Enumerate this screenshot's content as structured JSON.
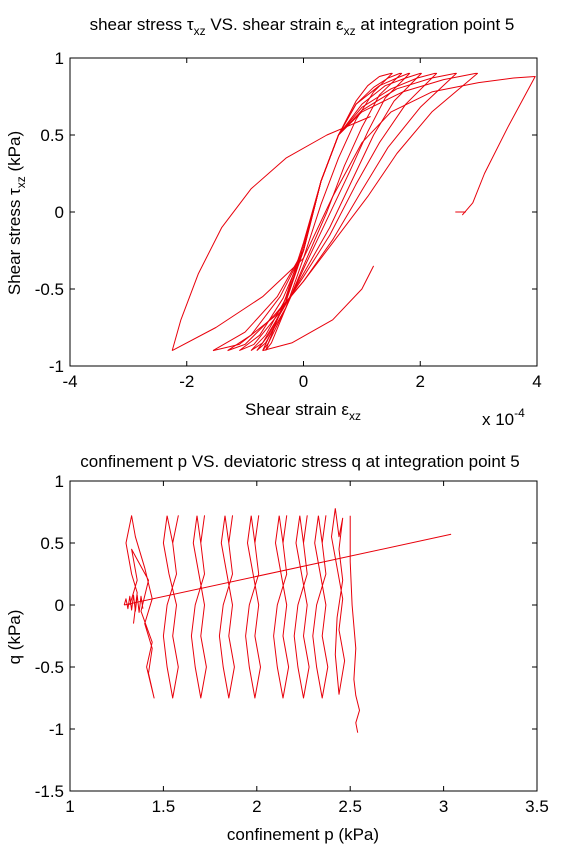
{
  "chart_data": [
    {
      "type": "line",
      "title": "shear stress τxz VS. shear strain εxz at integration point 5",
      "title_parts": {
        "a": "shear stress ",
        "a_sym": "τ",
        "a_sub": "xz",
        "b": " VS. shear strain ",
        "b_sym": "ε",
        "b_sub": "xz",
        "c": " at integration point 5"
      },
      "xlabel_parts": {
        "text": "Shear strain ",
        "sym": "ε",
        "sub": "xz"
      },
      "ylabel_parts": {
        "text": "Shear stress ",
        "sym": "τ",
        "sub": "xz",
        "unit": " (kPa)"
      },
      "x_exponent": {
        "base": "x 10",
        "exp": "-4"
      },
      "xlim": [
        -4,
        4
      ],
      "ylim": [
        -1,
        1
      ],
      "xticks": [
        -4,
        -2,
        0,
        2,
        4
      ],
      "yticks": [
        -1,
        -0.5,
        0,
        0.5,
        1
      ],
      "xtick_labels": [
        "-4",
        "-2",
        "0",
        "2",
        "4"
      ],
      "ytick_labels": [
        "-1",
        "-0.5",
        "0",
        "0.5",
        "1"
      ],
      "grid": false,
      "color": "#e8000b",
      "series": [
        {
          "x": [
            -0.65,
            -0.5,
            -0.3,
            0,
            0.3,
            0.6,
            0.9,
            1.1,
            1.3,
            1.5,
            1.52,
            1.2,
            0.9,
            0.6,
            0.3,
            0,
            -0.3,
            -0.55,
            -0.65
          ],
          "y": [
            -0.9,
            -0.75,
            -0.55,
            -0.2,
            0.2,
            0.5,
            0.72,
            0.82,
            0.88,
            0.9,
            0.9,
            0.78,
            0.6,
            0.35,
            0.05,
            -0.3,
            -0.62,
            -0.85,
            -0.9
          ]
        },
        {
          "x": [
            -0.7,
            -0.55,
            -0.3,
            0,
            0.3,
            0.6,
            0.9,
            1.2,
            1.45,
            1.65,
            1.68,
            1.3,
            1.0,
            0.7,
            0.4,
            0,
            -0.3,
            -0.6,
            -0.7
          ],
          "y": [
            -0.9,
            -0.78,
            -0.58,
            -0.22,
            0.2,
            0.5,
            0.7,
            0.81,
            0.87,
            0.9,
            0.9,
            0.76,
            0.55,
            0.3,
            0.0,
            -0.35,
            -0.62,
            -0.85,
            -0.9
          ]
        },
        {
          "x": [
            -0.8,
            -0.6,
            -0.3,
            0,
            0.3,
            0.6,
            0.9,
            1.3,
            1.6,
            1.8,
            1.82,
            1.4,
            1.1,
            0.8,
            0.4,
            0,
            -0.3,
            -0.65,
            -0.8
          ],
          "y": [
            -0.9,
            -0.8,
            -0.58,
            -0.25,
            0.2,
            0.5,
            0.7,
            0.82,
            0.87,
            0.9,
            0.9,
            0.74,
            0.52,
            0.27,
            -0.05,
            -0.37,
            -0.62,
            -0.85,
            -0.9
          ]
        },
        {
          "x": [
            -0.9,
            -0.65,
            -0.3,
            0,
            0.3,
            0.6,
            1.0,
            1.4,
            1.75,
            2.0,
            2.02,
            1.55,
            1.2,
            0.85,
            0.45,
            0,
            -0.35,
            -0.7,
            -0.9
          ],
          "y": [
            -0.9,
            -0.8,
            -0.56,
            -0.25,
            0.2,
            0.5,
            0.7,
            0.82,
            0.87,
            0.9,
            0.9,
            0.72,
            0.5,
            0.22,
            -0.1,
            -0.4,
            -0.63,
            -0.85,
            -0.9
          ]
        },
        {
          "x": [
            -1.1,
            -0.75,
            -0.35,
            0,
            0.3,
            0.6,
            1.0,
            1.5,
            1.95,
            2.25,
            2.28,
            1.75,
            1.3,
            0.9,
            0.45,
            0,
            -0.4,
            -0.85,
            -1.1
          ],
          "y": [
            -0.9,
            -0.8,
            -0.56,
            -0.25,
            0.2,
            0.5,
            0.68,
            0.8,
            0.87,
            0.9,
            0.9,
            0.7,
            0.45,
            0.18,
            -0.15,
            -0.42,
            -0.65,
            -0.86,
            -0.9
          ]
        },
        {
          "x": [
            -1.3,
            -0.9,
            -0.4,
            0,
            0.3,
            0.6,
            1.0,
            1.6,
            2.2,
            2.6,
            2.62,
            2.0,
            1.45,
            1.0,
            0.5,
            0,
            -0.5,
            -1.0,
            -1.3
          ],
          "y": [
            -0.9,
            -0.8,
            -0.55,
            -0.25,
            0.2,
            0.5,
            0.66,
            0.8,
            0.87,
            0.9,
            0.9,
            0.68,
            0.42,
            0.14,
            -0.18,
            -0.45,
            -0.67,
            -0.86,
            -0.9
          ]
        },
        {
          "x": [
            -1.55,
            -1.0,
            -0.45,
            0,
            0.3,
            0.6,
            1.0,
            1.7,
            2.4,
            2.95,
            2.98,
            2.2,
            1.6,
            1.1,
            0.5,
            0,
            -0.5,
            -1.1,
            -1.55
          ],
          "y": [
            -0.9,
            -0.78,
            -0.55,
            -0.25,
            0.2,
            0.5,
            0.65,
            0.78,
            0.86,
            0.9,
            0.9,
            0.65,
            0.38,
            0.1,
            -0.2,
            -0.45,
            -0.68,
            -0.86,
            -0.9
          ]
        },
        {
          "x": [
            -2.25,
            -1.5,
            -0.7,
            0,
            0.5,
            1.0,
            1.5,
            2.2,
            3.0,
            3.6,
            3.97,
            3.5,
            3.1,
            2.9,
            2.72
          ],
          "y": [
            -0.9,
            -0.75,
            -0.55,
            -0.3,
            0.1,
            0.45,
            0.65,
            0.78,
            0.84,
            0.87,
            0.88,
            0.55,
            0.25,
            0.06,
            -0.02
          ]
        },
        {
          "x": [
            2.6,
            2.78
          ],
          "y": [
            0.0,
            0.0
          ]
        },
        {
          "x": [
            1.15,
            0.4,
            -0.3,
            -0.9,
            -1.4,
            -1.8,
            -2.1,
            -2.25
          ],
          "y": [
            0.62,
            0.5,
            0.35,
            0.15,
            -0.1,
            -0.4,
            -0.7,
            -0.9
          ]
        },
        {
          "x": [
            -0.7,
            -0.2,
            0.5,
            1.0,
            1.2
          ],
          "y": [
            -0.9,
            -0.85,
            -0.7,
            -0.5,
            -0.35
          ]
        }
      ]
    },
    {
      "type": "line",
      "title": "confinement p VS. deviatoric stress q at integration point 5",
      "xlabel": "confinement p (kPa)",
      "ylabel": "q (kPa)",
      "xlim": [
        1,
        3.5
      ],
      "ylim": [
        -1.5,
        1
      ],
      "xticks": [
        1,
        1.5,
        2,
        2.5,
        3,
        3.5
      ],
      "yticks": [
        -1.5,
        -1,
        -0.5,
        0,
        0.5,
        1
      ],
      "xtick_labels": [
        "1",
        "1.5",
        "2",
        "2.5",
        "3",
        "3.5"
      ],
      "ytick_labels": [
        "-1.5",
        "-1",
        "-0.5",
        "0",
        "0.5",
        "1"
      ],
      "grid": false,
      "color": "#e8000b",
      "series": [
        {
          "x": [
            1.29,
            1.3,
            1.31,
            1.32,
            1.33,
            1.34,
            1.35,
            1.36,
            1.37,
            1.38,
            1.39
          ],
          "y": [
            0.0,
            0.05,
            -0.03,
            0.07,
            -0.04,
            0.08,
            -0.05,
            0.08,
            -0.06,
            0.07,
            -0.03
          ]
        },
        {
          "x": [
            1.29,
            3.04
          ],
          "y": [
            0.0,
            0.57
          ]
        },
        {
          "x": [
            1.32,
            1.36,
            1.33,
            1.42,
            1.38,
            1.44,
            1.41,
            1.45,
            1.42,
            1.44,
            1.4,
            1.44,
            1.4,
            1.35,
            1.33,
            1.3,
            1.33,
            1.36,
            1.34
          ],
          "y": [
            0.0,
            0.2,
            0.45,
            0.2,
            -0.05,
            -0.3,
            -0.5,
            -0.75,
            -0.55,
            -0.35,
            -0.15,
            0.05,
            0.3,
            0.55,
            0.72,
            0.5,
            0.25,
            0.1,
            -0.15
          ]
        },
        {
          "x": [
            1.52,
            1.5,
            1.53,
            1.57,
            1.55,
            1.58,
            1.55,
            1.52,
            1.5,
            1.52,
            1.57,
            1.55,
            1.58,
            1.55,
            1.52
          ],
          "y": [
            0.72,
            0.5,
            0.25,
            0.0,
            -0.25,
            -0.5,
            -0.75,
            -0.5,
            -0.25,
            0.0,
            0.25,
            0.5,
            0.72,
            0.5,
            0.72
          ]
        },
        {
          "x": [
            1.68,
            1.66,
            1.69,
            1.72,
            1.7,
            1.73,
            1.7,
            1.67,
            1.65,
            1.67,
            1.72,
            1.7,
            1.72,
            1.7,
            1.68
          ],
          "y": [
            0.72,
            0.5,
            0.25,
            0.0,
            -0.25,
            -0.5,
            -0.75,
            -0.5,
            -0.25,
            0.0,
            0.25,
            0.5,
            0.72,
            0.5,
            0.72
          ]
        },
        {
          "x": [
            1.83,
            1.81,
            1.84,
            1.87,
            1.85,
            1.88,
            1.85,
            1.82,
            1.8,
            1.82,
            1.87,
            1.85,
            1.87,
            1.85,
            1.83
          ],
          "y": [
            0.72,
            0.5,
            0.25,
            0.0,
            -0.25,
            -0.5,
            -0.75,
            -0.5,
            -0.25,
            0.0,
            0.25,
            0.5,
            0.72,
            0.5,
            0.72
          ]
        },
        {
          "x": [
            1.97,
            1.95,
            1.98,
            2.01,
            1.99,
            2.02,
            1.99,
            1.96,
            1.94,
            1.96,
            2.01,
            1.99,
            2.01,
            1.99,
            1.97
          ],
          "y": [
            0.72,
            0.5,
            0.25,
            0.0,
            -0.25,
            -0.5,
            -0.75,
            -0.5,
            -0.25,
            0.0,
            0.25,
            0.5,
            0.72,
            0.5,
            0.72
          ]
        },
        {
          "x": [
            2.12,
            2.1,
            2.13,
            2.16,
            2.14,
            2.17,
            2.14,
            2.11,
            2.09,
            2.11,
            2.16,
            2.14,
            2.16,
            2.14,
            2.12
          ],
          "y": [
            0.72,
            0.5,
            0.25,
            0.0,
            -0.25,
            -0.5,
            -0.75,
            -0.5,
            -0.25,
            0.0,
            0.25,
            0.5,
            0.72,
            0.5,
            0.72
          ]
        },
        {
          "x": [
            2.23,
            2.21,
            2.24,
            2.27,
            2.25,
            2.28,
            2.25,
            2.22,
            2.2,
            2.22,
            2.27,
            2.25,
            2.27,
            2.25,
            2.23
          ],
          "y": [
            0.72,
            0.5,
            0.25,
            0.0,
            -0.25,
            -0.5,
            -0.75,
            -0.5,
            -0.25,
            0.0,
            0.25,
            0.5,
            0.72,
            0.5,
            0.72
          ]
        },
        {
          "x": [
            2.33,
            2.31,
            2.34,
            2.37,
            2.35,
            2.38,
            2.35,
            2.32,
            2.3,
            2.32,
            2.37,
            2.35,
            2.37,
            2.35,
            2.33
          ],
          "y": [
            0.72,
            0.5,
            0.25,
            0.0,
            -0.25,
            -0.5,
            -0.75,
            -0.5,
            -0.25,
            0.0,
            0.25,
            0.5,
            0.72,
            0.5,
            0.72
          ]
        },
        {
          "x": [
            2.42,
            2.4,
            2.43,
            2.46,
            2.44,
            2.47,
            2.44,
            2.42,
            2.43,
            2.46,
            2.44,
            2.46,
            2.44,
            2.42
          ],
          "y": [
            0.78,
            0.55,
            0.3,
            0.05,
            -0.2,
            -0.45,
            -0.72,
            -0.4,
            -0.1,
            0.2,
            0.45,
            0.7,
            0.55,
            0.78
          ]
        },
        {
          "x": [
            2.5,
            2.5,
            2.51,
            2.53,
            2.52,
            2.53,
            2.55,
            2.53,
            2.54
          ],
          "y": [
            0.72,
            0.35,
            0.0,
            -0.35,
            -0.6,
            -0.73,
            -0.85,
            -0.95,
            -1.03
          ]
        }
      ]
    }
  ]
}
